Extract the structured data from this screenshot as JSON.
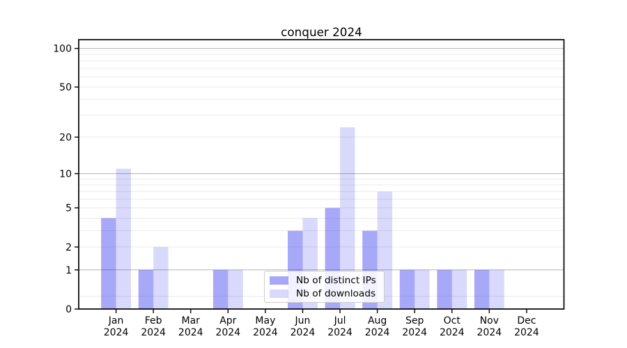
{
  "chart_data": {
    "type": "bar",
    "title": "conquer 2024",
    "categories": [
      "Jan",
      "Feb",
      "Mar",
      "Apr",
      "May",
      "Jun",
      "Jul",
      "Aug",
      "Sep",
      "Oct",
      "Nov",
      "Dec"
    ],
    "category_year": "2024",
    "series": [
      {
        "name": "Nb of distinct IPs",
        "color": "rgba(0,0,238,0.34)",
        "color_hex": "#a9a9fa",
        "values": [
          4,
          1,
          0,
          1,
          0,
          3,
          5,
          3,
          1,
          1,
          1,
          0
        ]
      },
      {
        "name": "Nb of downloads",
        "color": "rgba(0,0,238,0.15)",
        "color_hex": "#dbdbfa",
        "values": [
          11,
          2,
          0,
          1,
          0,
          4,
          24,
          7,
          1,
          1,
          1,
          0
        ]
      }
    ],
    "y_scale": "log1p",
    "ylim": [
      0,
      117
    ],
    "y_ticks": [
      0,
      1,
      2,
      5,
      10,
      20,
      50,
      100
    ],
    "y_major_gridlines": [
      1,
      10,
      100
    ],
    "y_minor_gridlines": [
      0.25,
      2,
      3,
      4,
      5,
      6,
      7,
      8,
      9,
      20,
      30,
      40,
      50,
      60,
      70,
      80,
      90
    ],
    "grid": true,
    "legend_position": "lower center",
    "bar_width_fraction": 0.4
  },
  "colors": {
    "major_grid": "#b5b5b5",
    "minor_grid": "#ebebeb",
    "spine": "#000000",
    "tick_text": "#000000",
    "background": "#ffffff"
  }
}
